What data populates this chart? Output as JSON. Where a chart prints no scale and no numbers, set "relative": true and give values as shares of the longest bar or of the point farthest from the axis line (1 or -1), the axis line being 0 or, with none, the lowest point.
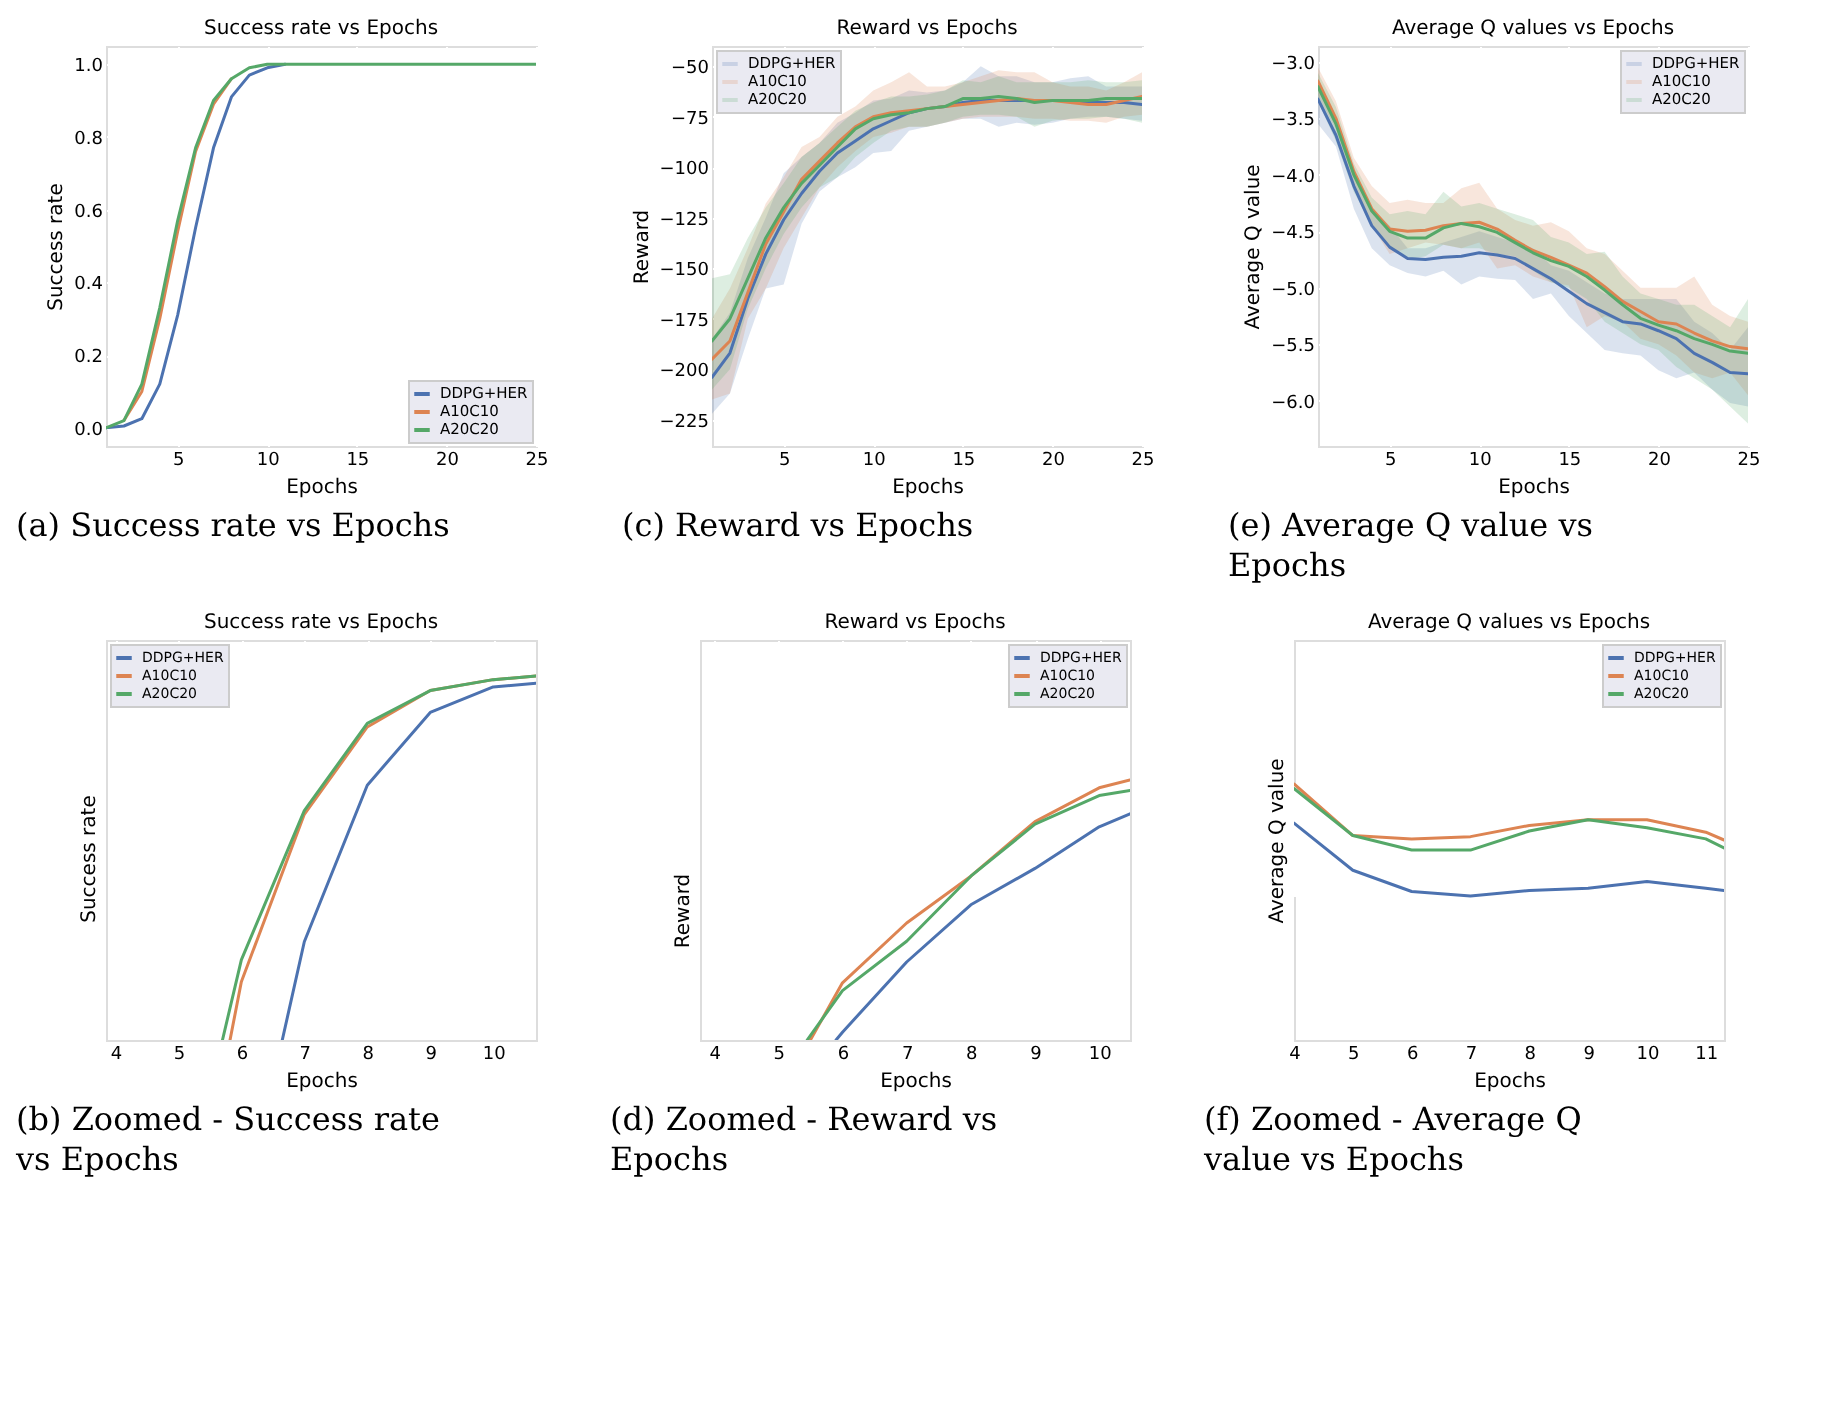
{
  "chart_data": [
    {
      "type": "line",
      "title": "Success rate vs Epochs",
      "xlabel": "Epochs",
      "ylabel": "Success rate",
      "xlim": [
        1,
        25
      ],
      "xticks": [
        5,
        10,
        15,
        20,
        25
      ],
      "ylim": [
        -0.05,
        1.05
      ],
      "yticks": [
        {
          "value": 0,
          "label": "0.0"
        },
        0.2,
        0.4,
        0.6,
        0.8,
        {
          "value": 1,
          "label": "1.0"
        }
      ],
      "grid": true,
      "legend": "bottom right",
      "annotations": [
        "(a) Success rate vs Epochs"
      ],
      "x": [
        1,
        2,
        3,
        4,
        5,
        6,
        7,
        8,
        9,
        10,
        11,
        12,
        13,
        14,
        15,
        16,
        17,
        18,
        19,
        20,
        21,
        22,
        23,
        24,
        25
      ],
      "series": [
        {
          "name": "DDPG+HER",
          "color": "#4c72b0",
          "values": [
            0,
            0.005,
            0.025,
            0.12,
            0.31,
            0.55,
            0.77,
            0.91,
            0.97,
            0.99,
            1.0,
            null,
            null,
            null,
            null,
            null,
            null,
            null,
            null,
            null,
            null,
            null,
            null,
            null,
            null
          ]
        },
        {
          "name": "A10C10",
          "color": "#dd8452",
          "values": [
            null,
            0.02,
            0.1,
            0.3,
            0.54,
            0.76,
            0.89,
            0.96,
            null,
            null,
            null,
            null,
            null,
            null,
            null,
            null,
            null,
            null,
            null,
            null,
            null,
            null,
            null,
            null,
            null
          ]
        },
        {
          "name": "A20C20",
          "color": "#55a868",
          "values": [
            0,
            0.02,
            0.12,
            0.33,
            0.57,
            0.77,
            0.9,
            0.96,
            0.99,
            1.0,
            1.0,
            1.0,
            1.0,
            1.0,
            1.0,
            1.0,
            1.0,
            1.0,
            1.0,
            1.0,
            1.0,
            1.0,
            1.0,
            1.0,
            1.0
          ]
        }
      ]
    },
    {
      "type": "line",
      "title": "Reward vs Epochs",
      "xlabel": "Epochs",
      "ylabel": "Reward",
      "xlim": [
        1,
        25
      ],
      "xticks": [
        5,
        10,
        15,
        20,
        25
      ],
      "ylim": [
        -238,
        -40
      ],
      "yticks": [
        {
          "value": -225,
          "label": "−225"
        },
        {
          "value": -200,
          "label": "−200"
        },
        {
          "value": -175,
          "label": "−175"
        },
        {
          "value": -150,
          "label": "−150"
        },
        {
          "value": -125,
          "label": "−125"
        },
        {
          "value": -100,
          "label": "−100"
        },
        {
          "value": -75,
          "label": "−75"
        },
        {
          "value": -50,
          "label": "−50"
        }
      ],
      "grid": true,
      "legend": "top left",
      "annotations": [
        "(c) Reward vs Epochs"
      ],
      "x": [
        1,
        2,
        3,
        4,
        5,
        6,
        7,
        8,
        9,
        10,
        11,
        12,
        13,
        14,
        15,
        16,
        17,
        18,
        19,
        20,
        21,
        22,
        23,
        24,
        25
      ],
      "series": [
        {
          "name": "DDPG+HER",
          "color": "#4c72b0",
          "values": [
            -204,
            -192,
            -165,
            -143,
            -126,
            -113,
            -102,
            -93,
            -87,
            -81,
            -77,
            -73,
            -71,
            -70,
            -68,
            -67,
            -67,
            -67,
            -67,
            -67,
            -67,
            -68,
            -68,
            -68,
            -69
          ],
          "lower": [
            -222,
            -212,
            -185,
            -160,
            -158,
            -128,
            -112,
            -105,
            -100,
            -93,
            -92,
            -82,
            -80,
            -78,
            -76,
            -76,
            -80,
            -78,
            -79,
            -78,
            -76,
            -75,
            -75,
            -76,
            -77
          ],
          "upper": [
            -185,
            -172,
            -145,
            -125,
            -103,
            -95,
            -88,
            -78,
            -73,
            -67,
            -66,
            -62,
            -63,
            -62,
            -58,
            -50,
            -55,
            -55,
            -58,
            -58,
            -56,
            -55,
            -60,
            -60,
            -60
          ]
        },
        {
          "name": "A10C10",
          "color": "#dd8452",
          "values": [
            -195,
            -186,
            -162,
            -138,
            -122,
            -106,
            -97,
            -88,
            -80,
            -75,
            -73,
            -72,
            -71,
            -70,
            -69,
            -68,
            -67,
            -66,
            -67,
            -67,
            -68,
            -69,
            -69,
            -67,
            -65
          ],
          "lower": [
            -215,
            -212,
            -175,
            -160,
            -140,
            -125,
            -110,
            -100,
            -92,
            -85,
            -83,
            -80,
            -80,
            -78,
            -76,
            -75,
            -75,
            -75,
            -76,
            -76,
            -77,
            -77,
            -78,
            -75,
            -74
          ],
          "upper": [
            -175,
            -160,
            -140,
            -118,
            -105,
            -90,
            -85,
            -75,
            -70,
            -62,
            -58,
            -53,
            -60,
            -60,
            -58,
            -55,
            -52,
            -53,
            -53,
            -58,
            -60,
            -60,
            -62,
            -58,
            -53
          ]
        },
        {
          "name": "A20C20",
          "color": "#55a868",
          "values": [
            -186,
            -175,
            -155,
            -135,
            -120,
            -108,
            -99,
            -90,
            -81,
            -76,
            -74,
            -73,
            -71,
            -70,
            -66,
            -66,
            -65,
            -66,
            -68,
            -67,
            -67,
            -67,
            -66,
            -66,
            -66
          ],
          "lower": [
            -210,
            -200,
            -170,
            -150,
            -133,
            -120,
            -110,
            -105,
            -95,
            -88,
            -82,
            -80,
            -80,
            -78,
            -75,
            -74,
            -74,
            -75,
            -80,
            -77,
            -76,
            -76,
            -75,
            -76,
            -78
          ],
          "upper": [
            -155,
            -153,
            -135,
            -120,
            -108,
            -95,
            -88,
            -80,
            -72,
            -68,
            -65,
            -65,
            -64,
            -62,
            -57,
            -58,
            -55,
            -58,
            -58,
            -58,
            -58,
            -57,
            -58,
            -58,
            -57
          ]
        }
      ]
    },
    {
      "type": "line",
      "title": "Average Q values vs Epochs",
      "xlabel": "Epochs",
      "ylabel": "Average Q value",
      "xlim": [
        1,
        25
      ],
      "xticks": [
        5,
        10,
        15,
        20,
        25
      ],
      "ylim": [
        -6.4,
        -2.86
      ],
      "yticks": [
        {
          "value": -6,
          "label": "−6.0"
        },
        {
          "value": -5.5,
          "label": "−5.5"
        },
        {
          "value": -5,
          "label": "−5.0"
        },
        {
          "value": -4.5,
          "label": "−4.5"
        },
        {
          "value": -4,
          "label": "−4.0"
        },
        {
          "value": -3.5,
          "label": "−3.5"
        },
        {
          "value": -3,
          "label": "−3.0"
        }
      ],
      "grid": true,
      "legend": "top right",
      "annotations": [
        "(e) Average Q value vs Epochs"
      ],
      "x": [
        1,
        2,
        3,
        4,
        5,
        6,
        7,
        8,
        9,
        10,
        11,
        12,
        13,
        14,
        15,
        16,
        17,
        18,
        19,
        20,
        21,
        22,
        23,
        24,
        25
      ],
      "series": [
        {
          "name": "DDPG+HER",
          "color": "#4c72b0",
          "values": [
            -3.33,
            -3.65,
            -4.1,
            -4.45,
            -4.64,
            -4.74,
            -4.75,
            -4.73,
            -4.72,
            -4.69,
            -4.71,
            -4.74,
            -4.83,
            -4.92,
            -5.03,
            -5.14,
            -5.22,
            -5.3,
            -5.32,
            -5.38,
            -5.45,
            -5.58,
            -5.66,
            -5.75,
            -5.76
          ],
          "lower": [
            -3.55,
            -3.75,
            -4.3,
            -4.65,
            -4.8,
            -4.87,
            -4.9,
            -4.85,
            -4.97,
            -4.9,
            -4.92,
            -4.93,
            -5.1,
            -5.05,
            -5.25,
            -5.4,
            -5.55,
            -5.58,
            -5.6,
            -5.73,
            -5.8,
            -5.75,
            -5.9,
            -6.02,
            -6.05
          ],
          "upper": [
            -3.15,
            -3.5,
            -3.95,
            -4.3,
            -4.45,
            -4.65,
            -4.65,
            -4.6,
            -4.55,
            -4.5,
            -4.55,
            -4.6,
            -4.65,
            -4.8,
            -4.85,
            -4.95,
            -5.05,
            -5.1,
            -5.1,
            -5.1,
            -5.1,
            -5.3,
            -5.4,
            -5.55,
            -5.35
          ]
        },
        {
          "name": "A10C10",
          "color": "#dd8452",
          "values": [
            -3.17,
            -3.5,
            -3.97,
            -4.3,
            -4.48,
            -4.5,
            -4.49,
            -4.45,
            -4.43,
            -4.42,
            -4.48,
            -4.58,
            -4.67,
            -4.73,
            -4.8,
            -4.87,
            -4.99,
            -5.12,
            -5.21,
            -5.3,
            -5.32,
            -5.4,
            -5.47,
            -5.52,
            -5.54
          ],
          "lower": [
            -3.3,
            -3.6,
            -4.1,
            -4.45,
            -4.7,
            -4.65,
            -4.6,
            -4.62,
            -4.65,
            -4.6,
            -4.83,
            -4.8,
            -4.9,
            -4.95,
            -4.98,
            -5.35,
            -5.25,
            -5.3,
            -5.45,
            -5.5,
            -5.6,
            -5.75,
            -5.8,
            -5.75,
            -5.95
          ],
          "upper": [
            -3.05,
            -3.35,
            -3.85,
            -4.1,
            -4.25,
            -4.22,
            -4.25,
            -4.25,
            -4.12,
            -4.07,
            -4.3,
            -4.4,
            -4.45,
            -4.42,
            -4.5,
            -4.65,
            -4.7,
            -4.85,
            -5.0,
            -5.0,
            -5.0,
            -4.9,
            -5.15,
            -5.25,
            -5.3
          ]
        },
        {
          "name": "A20C20",
          "color": "#55a868",
          "values": [
            -3.22,
            -3.55,
            -4.0,
            -4.32,
            -4.5,
            -4.56,
            -4.56,
            -4.47,
            -4.43,
            -4.46,
            -4.51,
            -4.6,
            -4.69,
            -4.76,
            -4.81,
            -4.9,
            -5.02,
            -5.15,
            -5.27,
            -5.33,
            -5.38,
            -5.45,
            -5.5,
            -5.56,
            -5.58
          ],
          "lower": [
            -3.35,
            -3.7,
            -4.15,
            -4.45,
            -4.65,
            -4.75,
            -4.72,
            -4.62,
            -4.65,
            -4.65,
            -4.7,
            -4.72,
            -4.85,
            -4.95,
            -5.0,
            -5.1,
            -5.3,
            -5.4,
            -5.5,
            -5.55,
            -5.7,
            -5.8,
            -5.9,
            -6.05,
            -6.2
          ],
          "upper": [
            -3.1,
            -3.4,
            -3.9,
            -4.2,
            -4.35,
            -4.32,
            -4.35,
            -4.15,
            -4.28,
            -4.25,
            -4.3,
            -4.35,
            -4.4,
            -4.55,
            -4.6,
            -4.7,
            -4.68,
            -4.9,
            -5.05,
            -5.1,
            -5.15,
            -5.15,
            -5.25,
            -5.35,
            -5.1
          ]
        }
      ]
    },
    {
      "type": "line",
      "relative": true,
      "title": "Success rate vs Epochs",
      "xlabel": "Epochs",
      "ylabel": "Success rate",
      "xlim": [
        3.85,
        10.68
      ],
      "xticks": [
        4,
        5,
        6,
        7,
        8,
        9,
        10
      ],
      "grid": true,
      "legend": "top left",
      "annotations": [
        "(b) Zoomed - Success rate vs Epochs"
      ],
      "series": [
        {
          "name": "DDPG+HER",
          "color": "#4c72b0",
          "x": [
            6.65,
            7,
            8,
            9,
            10,
            10.68
          ],
          "values": [
            0,
            0.27,
            0.7,
            0.9,
            0.97,
            0.98
          ]
        },
        {
          "name": "A10C10",
          "color": "#dd8452",
          "x": [
            5.82,
            6,
            7,
            8,
            9,
            10,
            10.68
          ],
          "values": [
            0,
            0.16,
            0.62,
            0.86,
            0.96,
            0.99,
            1.0
          ]
        },
        {
          "name": "A20C20",
          "color": "#55a868",
          "x": [
            5.7,
            6,
            7,
            8,
            9,
            10,
            10.68
          ],
          "values": [
            0,
            0.22,
            0.63,
            0.87,
            0.96,
            0.99,
            1.0
          ]
        }
      ]
    },
    {
      "type": "line",
      "relative": true,
      "title": "Reward vs Epochs",
      "xlabel": "Epochs",
      "ylabel": "Reward",
      "xlim": [
        3.78,
        10.48
      ],
      "xticks": [
        4,
        5,
        6,
        7,
        8,
        9,
        10
      ],
      "grid": true,
      "legend": "top right",
      "annotations": [
        "(d) Zoomed - Reward vs Epochs"
      ],
      "series": [
        {
          "name": "DDPG+HER",
          "color": "#4c72b0",
          "x": [
            5.9,
            6,
            7,
            8,
            9,
            10,
            10.48
          ],
          "values": [
            0,
            0.03,
            0.3,
            0.52,
            0.66,
            0.82,
            0.87
          ]
        },
        {
          "name": "A10C10",
          "color": "#dd8452",
          "x": [
            5.5,
            6,
            7,
            8,
            9,
            10,
            10.48
          ],
          "values": [
            0,
            0.22,
            0.45,
            0.63,
            0.84,
            0.97,
            1.0
          ]
        },
        {
          "name": "A20C20",
          "color": "#55a868",
          "x": [
            5.45,
            6,
            7,
            8,
            9,
            10,
            10.48
          ],
          "values": [
            0,
            0.19,
            0.38,
            0.63,
            0.83,
            0.94,
            0.96
          ]
        }
      ]
    },
    {
      "type": "line",
      "relative": true,
      "title": "Average Q values vs Epochs",
      "xlabel": "Epochs",
      "ylabel": "Average Q value",
      "xlim": [
        4,
        11.31
      ],
      "xticks": [
        4,
        5,
        6,
        7,
        8,
        9,
        10,
        11
      ],
      "grid": true,
      "legend": "top right",
      "annotations": [
        "(f) Zoomed - Average Q value vs Epochs"
      ],
      "x": [
        4,
        5,
        6,
        7,
        8,
        9,
        10,
        11,
        11.31
      ],
      "series": [
        {
          "name": "DDPG+HER",
          "color": "#4c72b0",
          "values": [
            0.65,
            0.23,
            0.04,
            0,
            0.05,
            0.07,
            0.13,
            0.07,
            0.05
          ]
        },
        {
          "name": "A10C10",
          "color": "#dd8452",
          "values": [
            1.0,
            0.54,
            0.51,
            0.53,
            0.63,
            0.68,
            0.68,
            0.57,
            0.5
          ]
        },
        {
          "name": "A20C20",
          "color": "#55a868",
          "values": [
            0.96,
            0.54,
            0.41,
            0.41,
            0.58,
            0.68,
            0.61,
            0.51,
            0.43
          ]
        }
      ]
    }
  ]
}
